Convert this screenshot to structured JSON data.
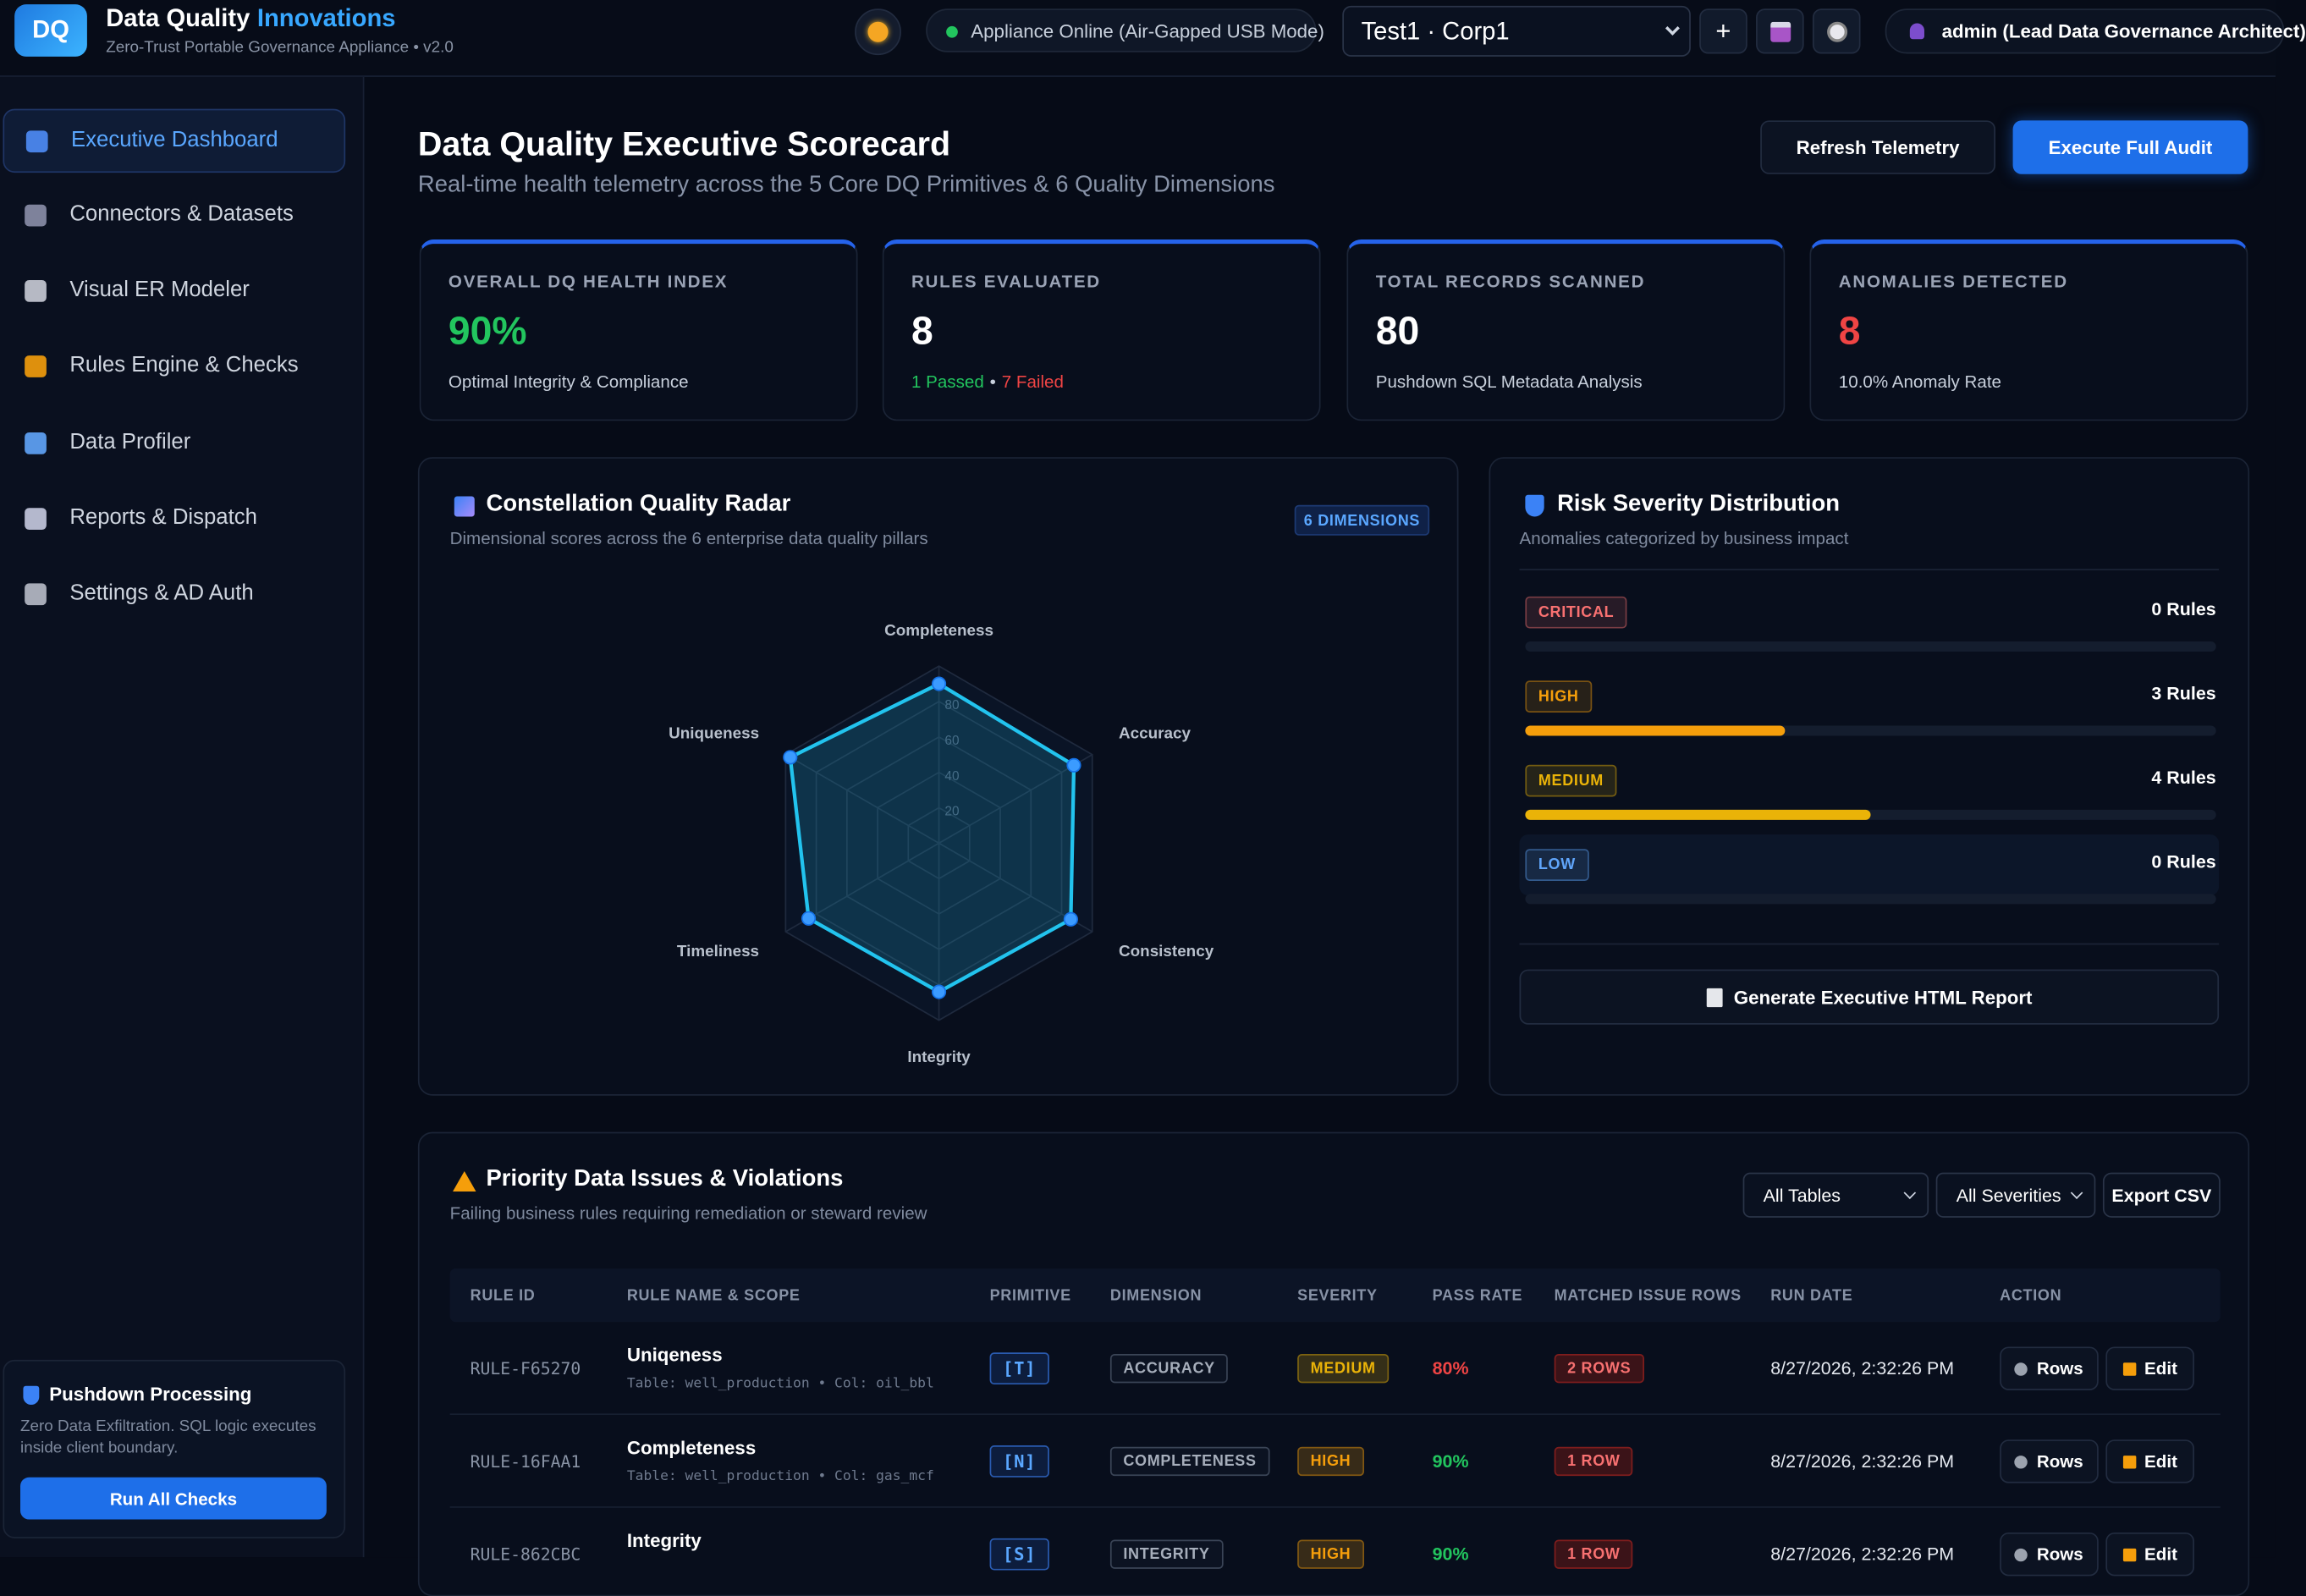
{
  "header": {
    "logo": "DQ",
    "brand": "Data Quality",
    "brand_accent": "Innovations",
    "tagline": "Zero-Trust Portable Governance Appliance • v2.0",
    "status": "Appliance Online (Air-Gapped USB Mode)",
    "workspace": "Test1 · Corp1",
    "add_button": "+",
    "user": "admin (Lead Data Governance Architect)"
  },
  "sidebar": {
    "items": [
      "Executive Dashboard",
      "Connectors & Datasets",
      "Visual ER Modeler",
      "Rules Engine & Checks",
      "Data Profiler",
      "Reports & Dispatch",
      "Settings & AD Auth"
    ],
    "icon_colors": [
      "#4f8df7",
      "#8b8fa8",
      "#c9ccd6",
      "#f59e0b",
      "#60a5fa",
      "#c7cbe0",
      "#b8bcc8"
    ],
    "panel": {
      "title": "Pushdown Processing",
      "text": "Zero Data Exfiltration. SQL logic executes inside client boundary.",
      "button": "Run All Checks"
    }
  },
  "page": {
    "title": "Data Quality Executive Scorecard",
    "subtitle": "Real-time health telemetry across the 5 Core DQ Primitives & 6 Quality Dimensions",
    "buttons": [
      "Refresh Telemetry",
      "Execute Full Audit"
    ]
  },
  "kpis": [
    {
      "label": "OVERALL DQ HEALTH INDEX",
      "value": "90%",
      "color": "#22c55e",
      "note": "Optimal Integrity & Compliance"
    },
    {
      "label": "RULES EVALUATED",
      "value": 8,
      "color": "#ffffff",
      "note_parts": [
        "1 Passed",
        "•",
        "7 Failed"
      ],
      "note_colors": [
        "#22c55e",
        "#c8d0dc",
        "#ef4444"
      ]
    },
    {
      "label": "TOTAL RECORDS SCANNED",
      "value": 80,
      "color": "#ffffff",
      "note": "Pushdown SQL Metadata Analysis"
    },
    {
      "label": "ANOMALIES DETECTED",
      "value": 8,
      "color": "#ef4444",
      "note": "10.0% Anomaly Rate"
    }
  ],
  "radar": {
    "title": "Constellation Quality Radar",
    "subtitle": "Dimensional scores across the 6 enterprise data quality pillars",
    "badge": "6 DIMENSIONS",
    "axes": [
      "Completeness",
      "Accuracy",
      "Consistency",
      "Integrity",
      "Timeliness",
      "Uniqueness"
    ],
    "values": [
      90,
      88,
      86,
      84,
      85,
      97
    ],
    "rlim": [
      0,
      100
    ],
    "rticks": [
      20,
      40,
      60,
      80
    ],
    "color": "#22c3ee"
  },
  "risk": {
    "title": "Risk Severity Distribution",
    "subtitle": "Anomalies categorized by business impact",
    "levels": [
      {
        "name": "CRITICAL",
        "count": 0,
        "count_label": "0 Rules",
        "color": "#f87171"
      },
      {
        "name": "HIGH",
        "count": 3,
        "count_label": "3 Rules",
        "color": "#f59e0b"
      },
      {
        "name": "MEDIUM",
        "count": 4,
        "count_label": "4 Rules",
        "color": "#eab308"
      },
      {
        "name": "LOW",
        "count": 0,
        "count_label": "0 Rules",
        "color": "#60a5fa"
      }
    ],
    "button": "Generate Executive HTML Report"
  },
  "issues": {
    "title": "Priority Data Issues & Violations",
    "subtitle": "Failing business rules requiring remediation or steward review",
    "filters": [
      "All Tables",
      "All Severities"
    ],
    "export": "Export CSV",
    "columns": [
      "RULE ID",
      "RULE NAME & SCOPE",
      "PRIMITIVE",
      "DIMENSION",
      "SEVERITY",
      "PASS RATE",
      "MATCHED ISSUE ROWS",
      "RUN DATE",
      "ACTION"
    ],
    "rows": [
      {
        "id": "RULE-F65270",
        "name": "Uniqeness",
        "scope": "Table: well_production • Col: oil_bbl",
        "primitive": "[T]",
        "dimension": "ACCURACY",
        "severity": "MEDIUM",
        "pass_rate": "80%",
        "pass_color": "#ef4444",
        "matched": "2 ROWS",
        "run_date": "8/27/2026, 2:32:26 PM",
        "actions": [
          "Rows",
          "Edit"
        ]
      },
      {
        "id": "RULE-16FAA1",
        "name": "Completeness",
        "scope": "Table: well_production • Col: gas_mcf",
        "primitive": "[N]",
        "dimension": "COMPLETENESS",
        "severity": "HIGH",
        "pass_rate": "90%",
        "pass_color": "#22c55e",
        "matched": "1 ROW",
        "run_date": "8/27/2026, 2:32:26 PM",
        "actions": [
          "Rows",
          "Edit"
        ]
      },
      {
        "id": "RULE-862CBC",
        "name": "Integrity",
        "primitive": "[S]",
        "dimension": "INTEGRITY",
        "severity": "HIGH",
        "pass_rate": "90%",
        "pass_color": "#22c55e",
        "matched": "1 ROW",
        "run_date": "8/27/2026, 2:32:26 PM",
        "actions": [
          "Rows",
          "Edit"
        ]
      }
    ]
  }
}
